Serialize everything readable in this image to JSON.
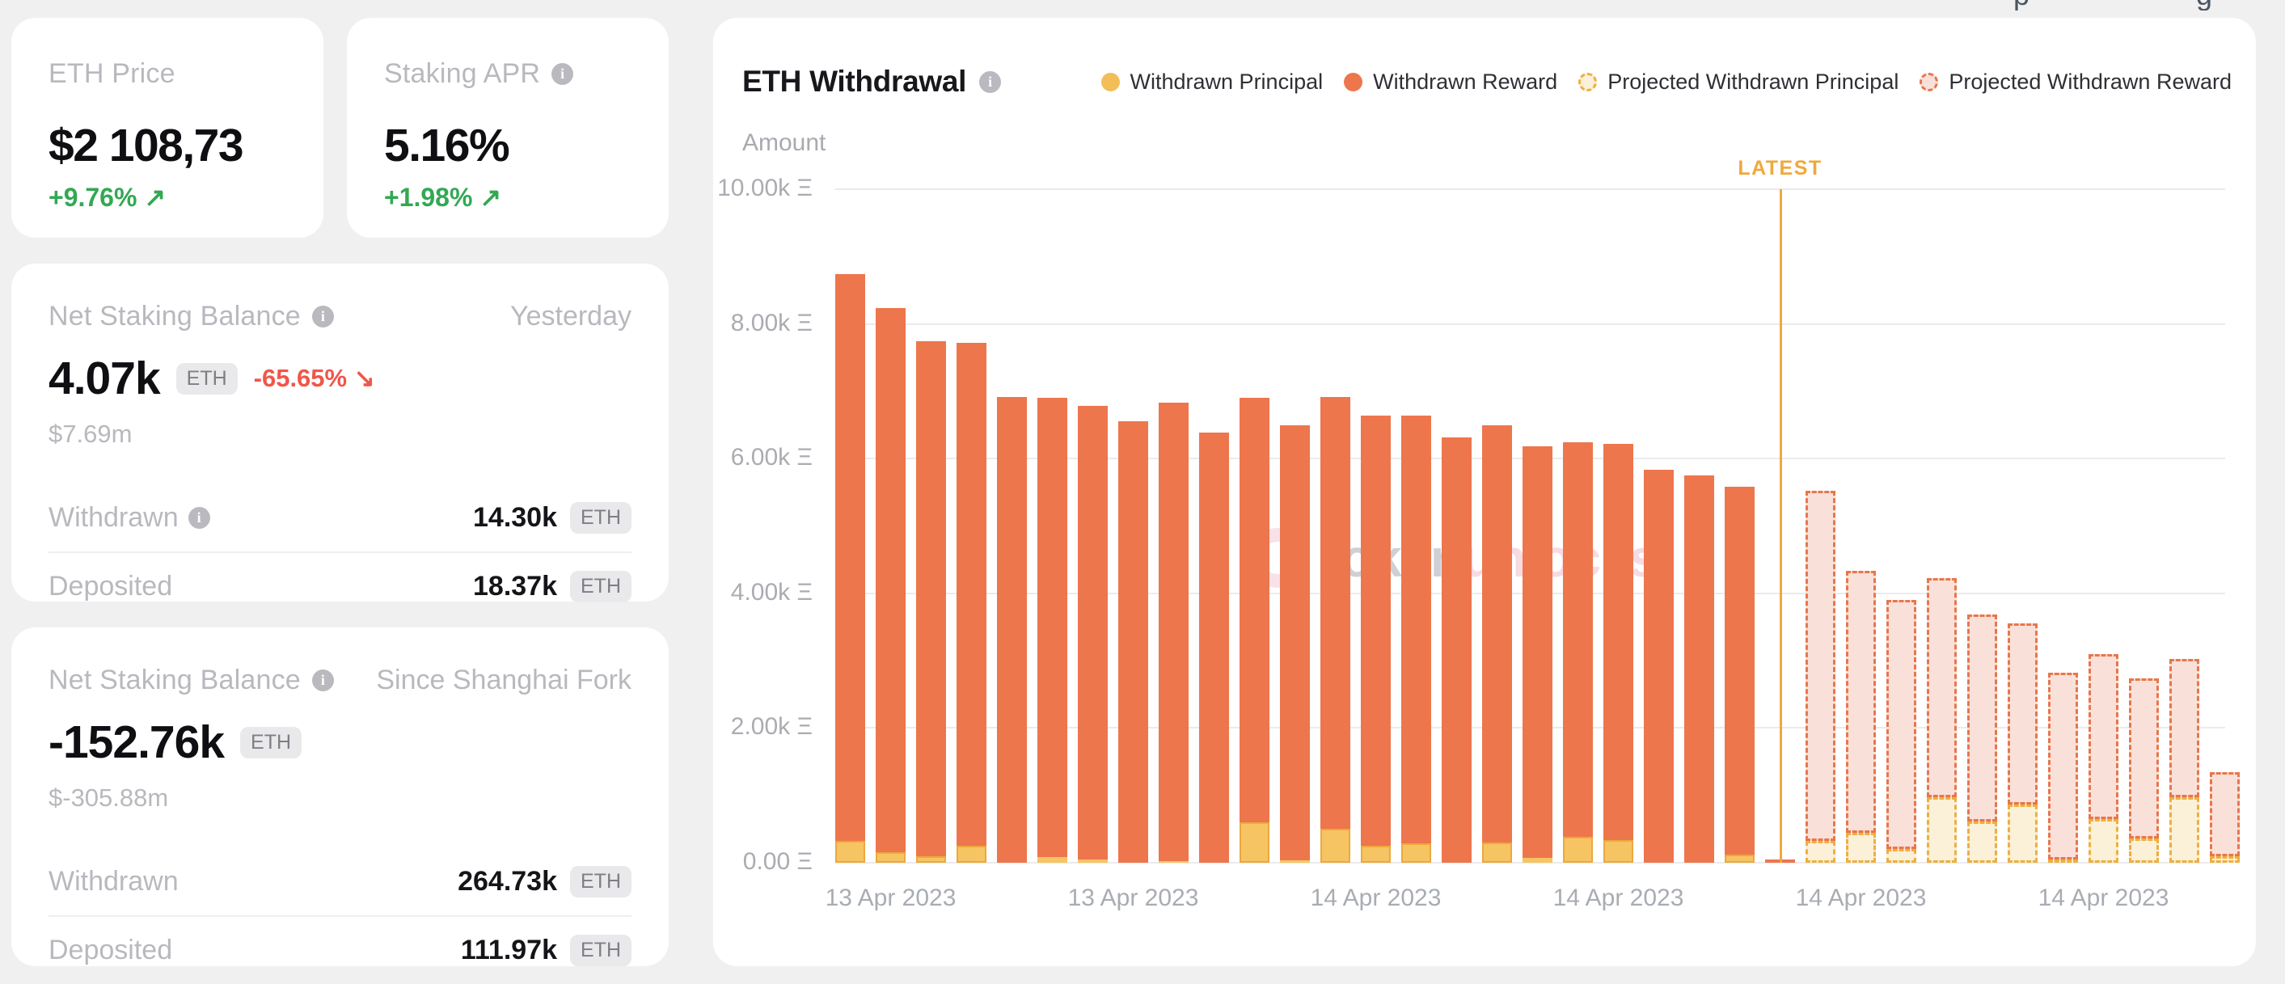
{
  "page_background": "#F0F0F1",
  "header_fragments": {
    "left_glyph": "p",
    "right_glyph": "g"
  },
  "cards": {
    "eth_price": {
      "title": "ETH Price",
      "value": "$2 108,73",
      "change": "+9.76%",
      "arrow": "↗"
    },
    "staking_apr": {
      "title": "Staking APR",
      "value": "5.16%",
      "change": "+1.98%",
      "arrow": "↗"
    },
    "net_staking_yesterday": {
      "title": "Net Staking Balance",
      "period": "Yesterday",
      "value": "4.07k",
      "unit": "ETH",
      "change": "-65.65%",
      "arrow": "↘",
      "usd": "$7.69m",
      "rows": [
        {
          "label": "Withdrawn",
          "info": true,
          "value": "14.30k",
          "unit": "ETH"
        },
        {
          "label": "Deposited",
          "info": false,
          "value": "18.37k",
          "unit": "ETH"
        }
      ]
    },
    "net_staking_shanghai": {
      "title": "Net Staking Balance",
      "period": "Since Shanghai Fork",
      "value": "-152.76k",
      "unit": "ETH",
      "usd": "$-305.88m",
      "rows": [
        {
          "label": "Withdrawn",
          "info": false,
          "value": "264.73k",
          "unit": "ETH"
        },
        {
          "label": "Deposited",
          "info": false,
          "value": "111.97k",
          "unit": "ETH"
        }
      ]
    }
  },
  "chart": {
    "title": "ETH Withdrawal",
    "axis_name": "Amount",
    "latest_label": "LATEST",
    "watermark": {
      "text_gray": "token",
      "text_pink": "unlocks."
    },
    "legend": [
      {
        "label": "Withdrawn Principal",
        "style": "solid",
        "color": "#F2BE58"
      },
      {
        "label": "Withdrawn Reward",
        "style": "solid",
        "color": "#ED764D"
      },
      {
        "label": "Projected Withdrawn Principal",
        "style": "dashed",
        "color": "#EEAF3E",
        "fill": "#FBF0D8"
      },
      {
        "label": "Projected Withdrawn Reward",
        "style": "dashed",
        "color": "#E8764B",
        "fill": "#F9E1DA"
      }
    ]
  },
  "chart_data": {
    "type": "bar",
    "stacked": true,
    "title": "ETH Withdrawal",
    "ylabel": "Amount",
    "unit": "ETH",
    "ylim": [
      0,
      10000
    ],
    "grid": true,
    "legend_position": "top-right",
    "y_ticks": [
      "10.00k Ξ",
      "8.00k Ξ",
      "6.00k Ξ",
      "4.00k Ξ",
      "2.00k Ξ",
      "0.00 Ξ"
    ],
    "x_ticks": [
      "13 Apr 2023",
      "13 Apr 2023",
      "14 Apr 2023",
      "14 Apr 2023",
      "14 Apr 2023",
      "14 Apr 2023"
    ],
    "series_names": [
      "Withdrawn Principal",
      "Withdrawn Reward",
      "Projected Withdrawn Principal",
      "Projected Withdrawn Reward"
    ],
    "bars": [
      {
        "principal": 320,
        "reward": 8420,
        "projected": false
      },
      {
        "principal": 160,
        "reward": 8080,
        "projected": false
      },
      {
        "principal": 100,
        "reward": 7640,
        "projected": false
      },
      {
        "principal": 250,
        "reward": 7470,
        "projected": false
      },
      {
        "principal": 0,
        "reward": 6920,
        "projected": false
      },
      {
        "principal": 80,
        "reward": 6820,
        "projected": false
      },
      {
        "principal": 50,
        "reward": 6730,
        "projected": false
      },
      {
        "principal": 0,
        "reward": 6550,
        "projected": false
      },
      {
        "principal": 30,
        "reward": 6800,
        "projected": false
      },
      {
        "principal": 0,
        "reward": 6390,
        "projected": false
      },
      {
        "principal": 600,
        "reward": 6300,
        "projected": false
      },
      {
        "principal": 40,
        "reward": 6450,
        "projected": false
      },
      {
        "principal": 500,
        "reward": 6410,
        "projected": false
      },
      {
        "principal": 250,
        "reward": 6390,
        "projected": false
      },
      {
        "principal": 290,
        "reward": 6350,
        "projected": false
      },
      {
        "principal": 0,
        "reward": 6320,
        "projected": false
      },
      {
        "principal": 300,
        "reward": 6190,
        "projected": false
      },
      {
        "principal": 70,
        "reward": 6110,
        "projected": false
      },
      {
        "principal": 390,
        "reward": 5850,
        "projected": false
      },
      {
        "principal": 340,
        "reward": 5880,
        "projected": false
      },
      {
        "principal": 0,
        "reward": 5830,
        "projected": false
      },
      {
        "principal": 0,
        "reward": 5750,
        "projected": false
      },
      {
        "principal": 120,
        "reward": 5460,
        "projected": false
      },
      {
        "principal": 0,
        "reward": 50,
        "projected": false
      },
      {
        "principal": 320,
        "reward": 5200,
        "projected": true
      },
      {
        "principal": 450,
        "reward": 3880,
        "projected": true
      },
      {
        "principal": 200,
        "reward": 3700,
        "projected": true
      },
      {
        "principal": 970,
        "reward": 3250,
        "projected": true
      },
      {
        "principal": 610,
        "reward": 3070,
        "projected": true
      },
      {
        "principal": 870,
        "reward": 2680,
        "projected": true
      },
      {
        "principal": 50,
        "reward": 2770,
        "projected": true
      },
      {
        "principal": 650,
        "reward": 2450,
        "projected": true
      },
      {
        "principal": 360,
        "reward": 2380,
        "projected": true
      },
      {
        "principal": 970,
        "reward": 2060,
        "projected": true
      },
      {
        "principal": 100,
        "reward": 1240,
        "projected": true
      }
    ],
    "latest_line_after_bar_index": 23
  }
}
